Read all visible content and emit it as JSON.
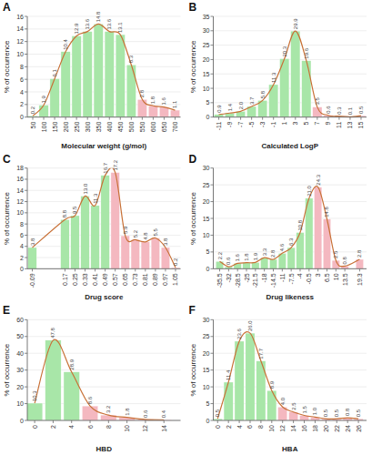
{
  "chart_data": [
    {
      "type": "bar",
      "title": "A",
      "xlabel": "Molecular weight (g/mol)",
      "ylabel": "% of occurrence",
      "x": [
        50,
        100,
        150,
        200,
        250,
        300,
        350,
        400,
        450,
        500,
        550,
        600,
        650,
        700
      ],
      "series": [
        {
          "type": "bar",
          "values": [
            0.2,
            1.9,
            6.1,
            10.4,
            12.9,
            13.6,
            14.8,
            13.6,
            13.1,
            8.3,
            2.8,
            1.8,
            1.6,
            1.1
          ],
          "colors": [
            "#a8e6a8",
            "#a8e6a8",
            "#a8e6a8",
            "#a8e6a8",
            "#a8e6a8",
            "#a8e6a8",
            "#a8e6a8",
            "#a8e6a8",
            "#a8e6a8",
            "#a8e6a8",
            "#f4b8c0",
            "#f4b8c0",
            "#f4b8c0",
            "#f4b8c0"
          ]
        },
        {
          "type": "line",
          "color": "#c87137",
          "values": [
            0.2,
            1.9,
            6.1,
            10.4,
            12.9,
            13.6,
            14.8,
            13.6,
            13.1,
            8.3,
            2.8,
            1.8,
            1.6,
            1.1
          ]
        }
      ],
      "xlim": [
        25,
        725
      ],
      "xticks": [
        50,
        100,
        150,
        200,
        250,
        300,
        350,
        400,
        450,
        500,
        550,
        600,
        650,
        700
      ],
      "ylim": [
        0,
        16
      ],
      "yticks": [
        0,
        2,
        4,
        6,
        8,
        10,
        12,
        14,
        16
      ],
      "grid": true,
      "data_labels": true
    },
    {
      "type": "bar",
      "title": "B",
      "xlabel": "Calculated LogP",
      "ylabel": "% of occurrence",
      "x": [
        -11,
        -9,
        -7,
        -5,
        -3,
        -1,
        1,
        3,
        5,
        7,
        9,
        11,
        13,
        15
      ],
      "series": [
        {
          "type": "bar",
          "values": [
            0.9,
            1.4,
            2.0,
            3.7,
            5.8,
            11.3,
            20.3,
            29.9,
            19.6,
            3.5,
            0.6,
            0.3,
            0.1,
            0.5
          ],
          "value_labels": [
            "0.9",
            "1.4",
            "2.0",
            "3.7",
            "5.8",
            "11.3",
            "20.3",
            "29.9",
            "19.6",
            "3.5",
            "0.6",
            "0.3",
            "0.1",
            "0.5"
          ],
          "colors": [
            "#a8e6a8",
            "#a8e6a8",
            "#a8e6a8",
            "#a8e6a8",
            "#a8e6a8",
            "#a8e6a8",
            "#a8e6a8",
            "#a8e6a8",
            "#a8e6a8",
            "#f4b8c0",
            "#f4b8c0",
            "#f4b8c0",
            "#f4b8c0",
            "#f4b8c0"
          ]
        },
        {
          "type": "line",
          "color": "#c87137",
          "values": [
            0.9,
            1.4,
            2.0,
            3.7,
            5.8,
            11.3,
            20.3,
            29.9,
            19.6,
            3.5,
            0.6,
            0.3,
            0.1,
            0.5
          ]
        }
      ],
      "xlim": [
        -12,
        16
      ],
      "xticks": [
        -11,
        -9,
        -7,
        -5,
        -3,
        -1,
        1,
        3,
        5,
        7,
        9,
        11,
        13,
        15
      ],
      "ylim": [
        0,
        35
      ],
      "yticks": [
        0,
        5,
        10,
        15,
        20,
        25,
        30,
        35
      ],
      "grid": true,
      "data_labels": true
    },
    {
      "type": "bar",
      "title": "C",
      "xlabel": "Drug score",
      "ylabel": "% of occurrence",
      "x": [
        -0.09,
        0.17,
        0.25,
        0.33,
        0.41,
        0.49,
        0.57,
        0.65,
        0.73,
        0.81,
        0.89,
        0.97,
        1.05
      ],
      "series": [
        {
          "type": "bar",
          "values": [
            3.8,
            8.8,
            9.5,
            13.0,
            11.3,
            16.7,
            17.2,
            5.9,
            5.2,
            4.8,
            5.5,
            3.8,
            0.2
          ],
          "value_labels": [
            "3.8",
            "8.8",
            "9.5",
            "13.0",
            "11.3",
            "16.7",
            "17.2",
            "5.9",
            "5.2",
            "4.8",
            "5.5",
            "3.8",
            "0.2"
          ],
          "colors": [
            "#a8e6a8",
            "#a8e6a8",
            "#a8e6a8",
            "#a8e6a8",
            "#a8e6a8",
            "#a8e6a8",
            "#f4b8c0",
            "#f4b8c0",
            "#f4b8c0",
            "#f4b8c0",
            "#f4b8c0",
            "#f4b8c0",
            "#f4b8c0"
          ]
        },
        {
          "type": "line",
          "color": "#c87137",
          "values": [
            3.8,
            8.8,
            9.5,
            13.0,
            11.3,
            16.7,
            17.2,
            5.9,
            5.2,
            4.8,
            5.5,
            3.8,
            0.2
          ]
        }
      ],
      "xlim": [
        -0.13,
        1.09
      ],
      "xticks": [
        -0.09,
        0.17,
        0.25,
        0.33,
        0.41,
        0.49,
        0.57,
        0.65,
        0.73,
        0.81,
        0.89,
        0.97,
        1.05
      ],
      "ylim": [
        0,
        18
      ],
      "yticks": [
        0,
        2,
        4,
        6,
        8,
        10,
        12,
        14,
        16,
        18
      ],
      "grid": true,
      "data_labels": true
    },
    {
      "type": "bar",
      "title": "D",
      "xlabel": "Drug likeness",
      "ylabel": "% of occurrence",
      "x": [
        -35.5,
        -32,
        -28.5,
        -25,
        -21.5,
        -18,
        -14.5,
        -11,
        -7.5,
        -4,
        -0.5,
        3,
        6.5,
        10,
        13.5,
        19.3
      ],
      "series": [
        {
          "type": "bar",
          "values": [
            2.2,
            0.6,
            1.6,
            1.8,
            1.9,
            3.3,
            2.8,
            4.6,
            6.3,
            10.8,
            21.0,
            24.3,
            14.8,
            2.5,
            0.8,
            2.8
          ],
          "value_labels": [
            "2.2",
            "0.6",
            "1.6",
            "1.8",
            "1.9",
            "3.3",
            "2.8",
            "4.6",
            "6.3",
            "10.8",
            "21.0",
            "24.3",
            "14.8",
            "2.5",
            "0.8",
            "2.8"
          ],
          "colors": [
            "#a8e6a8",
            "#a8e6a8",
            "#a8e6a8",
            "#a8e6a8",
            "#a8e6a8",
            "#a8e6a8",
            "#a8e6a8",
            "#a8e6a8",
            "#a8e6a8",
            "#a8e6a8",
            "#a8e6a8",
            "#f4b8c0",
            "#f4b8c0",
            "#f4b8c0",
            "#f4b8c0",
            "#f4b8c0"
          ]
        },
        {
          "type": "line",
          "color": "#c87137",
          "values": [
            2.2,
            0.6,
            1.6,
            1.8,
            1.9,
            3.3,
            2.8,
            4.6,
            6.3,
            10.8,
            21.0,
            24.3,
            14.8,
            2.5,
            0.8,
            2.8
          ]
        }
      ],
      "xlim": [
        -38,
        22
      ],
      "xticks": [
        -35.5,
        -32,
        -28.5,
        -25,
        -21.5,
        -18,
        -14.5,
        -11,
        -7.5,
        -4,
        -0.5,
        3,
        6.5,
        10,
        13.5,
        19.3
      ],
      "ylim": [
        0,
        30
      ],
      "yticks": [
        0,
        5,
        10,
        15,
        20,
        25,
        30
      ],
      "grid": true,
      "data_labels": true
    },
    {
      "type": "bar",
      "title": "E",
      "xlabel": "HBD",
      "ylabel": "% of occurrence",
      "x": [
        0,
        2,
        4,
        6,
        8,
        10,
        12,
        14
      ],
      "series": [
        {
          "type": "bar",
          "values": [
            10.3,
            47.8,
            28.9,
            8.6,
            3.2,
            1.8,
            0.6,
            0.4
          ],
          "colors": [
            "#a8e6a8",
            "#a8e6a8",
            "#a8e6a8",
            "#f4b8c0",
            "#f4b8c0",
            "#f4b8c0",
            "#f4b8c0",
            "#f4b8c0"
          ]
        },
        {
          "type": "line",
          "color": "#c87137",
          "values": [
            10.3,
            47.8,
            28.9,
            8.6,
            3.2,
            1.8,
            0.6,
            0.4
          ]
        }
      ],
      "xlim": [
        -0.8,
        15.8
      ],
      "xticks": [
        0,
        2,
        4,
        6,
        8,
        10,
        12,
        14
      ],
      "ylim": [
        0,
        60
      ],
      "yticks": [
        0,
        10,
        20,
        30,
        40,
        50,
        60
      ],
      "grid": true,
      "data_labels": true
    },
    {
      "type": "bar",
      "title": "F",
      "xlabel": "HBA",
      "ylabel": "% of occurrence",
      "x": [
        0,
        2,
        4,
        6,
        8,
        10,
        12,
        14,
        16,
        18,
        20,
        22,
        24,
        26
      ],
      "series": [
        {
          "type": "bar",
          "values": [
            0.5,
            11.4,
            23.6,
            26.0,
            17.7,
            8.9,
            4.0,
            2.5,
            1.5,
            1.0,
            0.5,
            0.5,
            0.8,
            0.5
          ],
          "value_labels": [
            "0.5",
            "11.4",
            "23.6",
            "26.0",
            "17.7",
            "8.9",
            "4.0",
            "2.5",
            "1.5",
            "1.0",
            "0.5",
            "0.5",
            "0.8",
            "0.5"
          ],
          "colors": [
            "#a8e6a8",
            "#a8e6a8",
            "#a8e6a8",
            "#a8e6a8",
            "#a8e6a8",
            "#a8e6a8",
            "#f4b8c0",
            "#f4b8c0",
            "#f4b8c0",
            "#f4b8c0",
            "#f4b8c0",
            "#f4b8c0",
            "#f4b8c0",
            "#f4b8c0"
          ]
        },
        {
          "type": "line",
          "color": "#c87137",
          "values": [
            0.5,
            11.4,
            23.6,
            26.0,
            17.7,
            8.9,
            4.0,
            2.5,
            1.5,
            1.0,
            0.5,
            0.5,
            0.8,
            0.5
          ]
        }
      ],
      "xlim": [
        -0.8,
        27.5
      ],
      "xticks": [
        0,
        2,
        4,
        6,
        8,
        10,
        12,
        14,
        16,
        18,
        20,
        22,
        24,
        26
      ],
      "ylim": [
        0,
        30
      ],
      "yticks": [
        0,
        5,
        10,
        15,
        20,
        25,
        30
      ],
      "grid": true,
      "data_labels": true
    }
  ]
}
